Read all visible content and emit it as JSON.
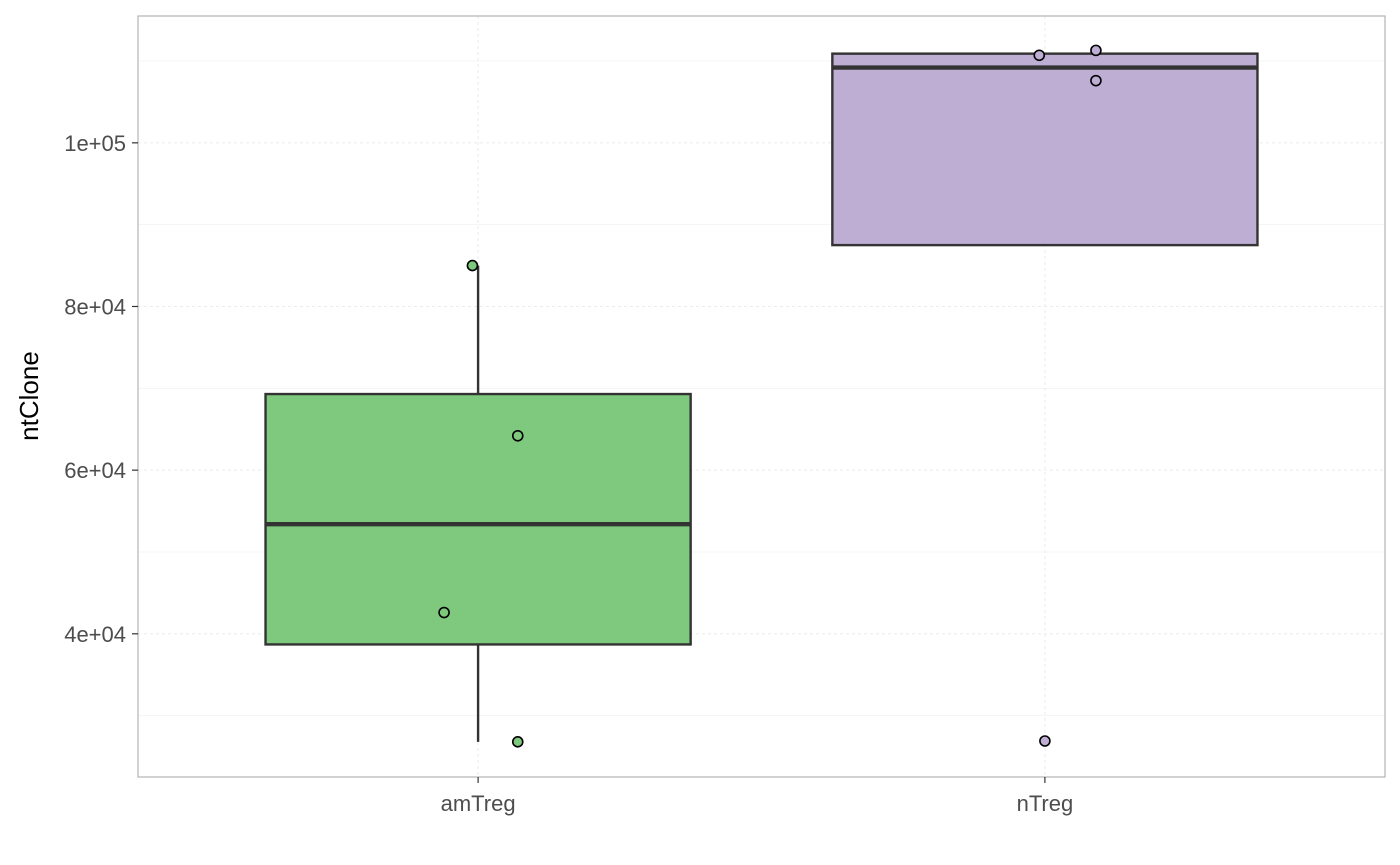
{
  "chart_data": {
    "type": "boxplot",
    "title": "",
    "xlabel": "",
    "ylabel": "ntClone",
    "categories": [
      "amTreg",
      "nTreg"
    ],
    "ylim": [
      22500,
      115500
    ],
    "y_ticks": [
      40000,
      60000,
      80000,
      100000
    ],
    "y_tick_labels": [
      "4e+04",
      "6e+04",
      "8e+04",
      "1e+05"
    ],
    "grid": true,
    "legend": "none",
    "boxes": [
      {
        "category": "amTreg",
        "fill": "#7fc97f",
        "whisker_low": 26800,
        "q1": 38700,
        "median": 53400,
        "q3": 69300,
        "whisker_high": 85000,
        "points": [
          85000,
          64200,
          42600,
          26800
        ]
      },
      {
        "category": "nTreg",
        "fill": "#beaed4",
        "whisker_low": 87500,
        "q1": 87500,
        "median": 109200,
        "q3": 110900,
        "whisker_high": 110900,
        "points": [
          111300,
          110700,
          107600,
          26900
        ]
      }
    ]
  }
}
